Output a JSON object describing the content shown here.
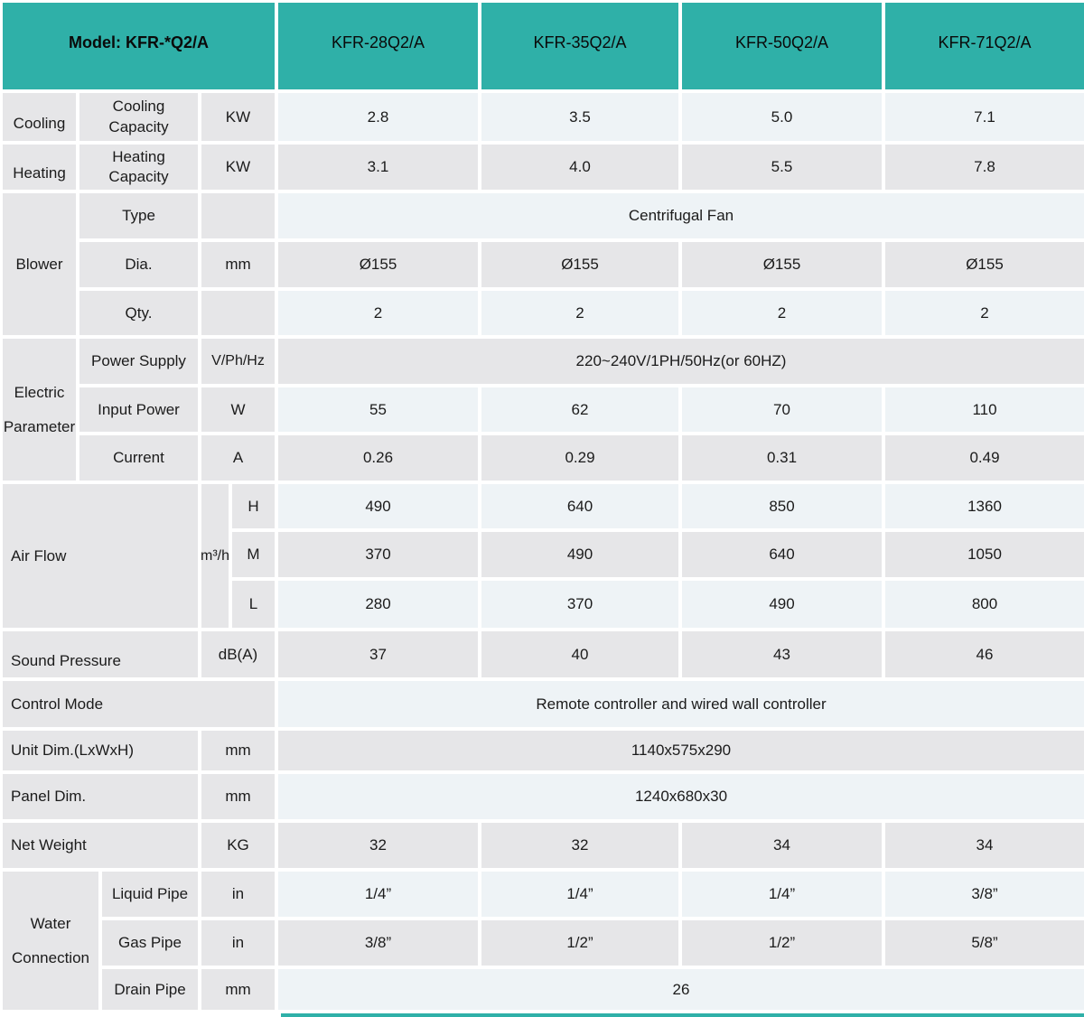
{
  "colors": {
    "header_teal": "#2fb0a8",
    "row_gray": "#e6e6e8",
    "row_light": "#eef3f6"
  },
  "header": {
    "model_label": "Model: KFR-*Q2/A",
    "models": [
      "KFR-28Q2/A",
      "KFR-35Q2/A",
      "KFR-50Q2/A",
      "KFR-71Q2/A"
    ]
  },
  "table": {
    "rows": {
      "cooling": {
        "group": "Cooling",
        "label": "Cooling Capacity",
        "unit": "KW",
        "values": [
          "2.8",
          "3.5",
          "5.0",
          "7.1"
        ]
      },
      "heating": {
        "group": "Heating",
        "label": "Heating Capacity",
        "unit": "KW",
        "values": [
          "3.1",
          "4.0",
          "5.5",
          "7.8"
        ]
      },
      "blower": {
        "group": "Blower",
        "type": {
          "label": "Type",
          "unit": "",
          "value": "Centrifugal Fan"
        },
        "dia": {
          "label": "Dia.",
          "unit": "mm",
          "values": [
            "Ø155",
            "Ø155",
            "Ø155",
            "Ø155"
          ]
        },
        "qty": {
          "label": "Qty.",
          "unit": "",
          "values": [
            "2",
            "2",
            "2",
            "2"
          ]
        }
      },
      "electric": {
        "group_line1": "Electric",
        "group_line2": "Parameter",
        "power_supply": {
          "label": "Power Supply",
          "unit": "V/Ph/Hz",
          "value": "220~240V/1PH/50Hz(or 60HZ)"
        },
        "input_power": {
          "label": "Input Power",
          "unit": "W",
          "values": [
            "55",
            "62",
            "70",
            "110"
          ]
        },
        "current": {
          "label": "Current",
          "unit": "A",
          "values": [
            "0.26",
            "0.29",
            "0.31",
            "0.49"
          ]
        }
      },
      "air_flow": {
        "label": "Air Flow",
        "unit": "m³/h",
        "h": {
          "label": "H",
          "values": [
            "490",
            "640",
            "850",
            "1360"
          ]
        },
        "m": {
          "label": "M",
          "values": [
            "370",
            "490",
            "640",
            "1050"
          ]
        },
        "l": {
          "label": "L",
          "values": [
            "280",
            "370",
            "490",
            "800"
          ]
        }
      },
      "sound_pressure": {
        "label": "Sound Pressure",
        "unit": "dB(A)",
        "values": [
          "37",
          "40",
          "43",
          "46"
        ]
      },
      "control_mode": {
        "label": "Control Mode",
        "value": "Remote controller and wired wall controller"
      },
      "unit_dim": {
        "label": "Unit Dim.(LxWxH)",
        "unit": "mm",
        "value": "1140x575x290"
      },
      "panel_dim": {
        "label": "Panel Dim.",
        "unit": "mm",
        "value": "1240x680x30"
      },
      "net_weight": {
        "label": "Net Weight",
        "unit": "KG",
        "values": [
          "32",
          "32",
          "34",
          "34"
        ]
      },
      "water": {
        "group_line1": "Water",
        "group_line2": "Connection",
        "liquid": {
          "label": "Liquid Pipe",
          "unit": "in",
          "values": [
            "1/4”",
            "1/4”",
            "1/4”",
            "3/8”"
          ]
        },
        "gas": {
          "label": "Gas Pipe",
          "unit": "in",
          "values": [
            "3/8”",
            "1/2”",
            "1/2”",
            "5/8”"
          ]
        },
        "drain": {
          "label": "Drain Pipe",
          "unit": "mm",
          "value": "26"
        }
      }
    }
  }
}
